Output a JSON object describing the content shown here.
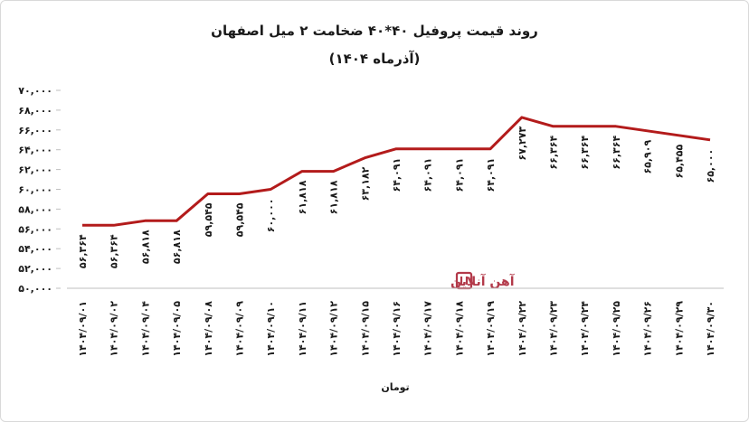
{
  "chart_data": {
    "type": "line",
    "title": "روند قیمت پروفیل ۴۰*۴۰ ضخامت ۲ میل اصفهان",
    "subtitle": "(آذرماه ۱۴۰۴)",
    "xlabel": "تومان",
    "ylabel": "",
    "ylim": [
      50000,
      70000
    ],
    "yticks": [
      50000,
      52000,
      54000,
      56000,
      58000,
      60000,
      62000,
      64000,
      66000,
      68000,
      70000
    ],
    "ytick_labels": [
      "۵۰,۰۰۰",
      "۵۲,۰۰۰",
      "۵۴,۰۰۰",
      "۵۶,۰۰۰",
      "۵۸,۰۰۰",
      "۶۰,۰۰۰",
      "۶۲,۰۰۰",
      "۶۴,۰۰۰",
      "۶۶,۰۰۰",
      "۶۸,۰۰۰",
      "۷۰,۰۰۰"
    ],
    "grid": false,
    "line_color": "#b31b1b",
    "categories": [
      "۱۴۰۴/۰۹/۰۱",
      "۱۴۰۴/۰۹/۰۲",
      "۱۴۰۴/۰۹/۰۴",
      "۱۴۰۴/۰۹/۰۵",
      "۱۴۰۴/۰۹/۰۸",
      "۱۴۰۴/۰۹/۰۹",
      "۱۴۰۴/۰۹/۱۰",
      "۱۴۰۴/۰۹/۱۱",
      "۱۴۰۴/۰۹/۱۲",
      "۱۴۰۴/۰۹/۱۵",
      "۱۴۰۴/۰۹/۱۶",
      "۱۴۰۴/۰۹/۱۷",
      "۱۴۰۴/۰۹/۱۸",
      "۱۴۰۴/۰۹/۱۹",
      "۱۴۰۴/۰۹/۲۲",
      "۱۴۰۴/۰۹/۲۳",
      "۱۴۰۴/۰۹/۲۴",
      "۱۴۰۴/۰۹/۲۵",
      "۱۴۰۴/۰۹/۲۶",
      "۱۴۰۴/۰۹/۲۹",
      "۱۴۰۴/۰۹/۳۰"
    ],
    "values": [
      56364,
      56364,
      56818,
      56818,
      59545,
      59545,
      60000,
      61818,
      61818,
      63182,
      64091,
      64091,
      64091,
      64091,
      67273,
      66364,
      66364,
      66364,
      65909,
      65455,
      65000
    ],
    "value_labels": [
      "۵۶,۳۶۴",
      "۵۶,۳۶۴",
      "۵۶,۸۱۸",
      "۵۶,۸۱۸",
      "۵۹,۵۴۵",
      "۵۹,۵۴۵",
      "۶۰,۰۰۰",
      "۶۱,۸۱۸",
      "۶۱,۸۱۸",
      "۶۳,۱۸۲",
      "۶۴,۰۹۱",
      "۶۴,۰۹۱",
      "۶۴,۰۹۱",
      "۶۴,۰۹۱",
      "۶۷,۲۷۳",
      "۶۶,۳۶۴",
      "۶۶,۳۶۴",
      "۶۶,۳۶۴",
      "۶۵,۹۰۹",
      "۶۵,۴۵۵",
      "۶۵,۰۰۰"
    ]
  },
  "watermark": {
    "text": "آهن آنلاین",
    "color": "#b33a4a",
    "icon": "ahanonline-logo-icon"
  }
}
